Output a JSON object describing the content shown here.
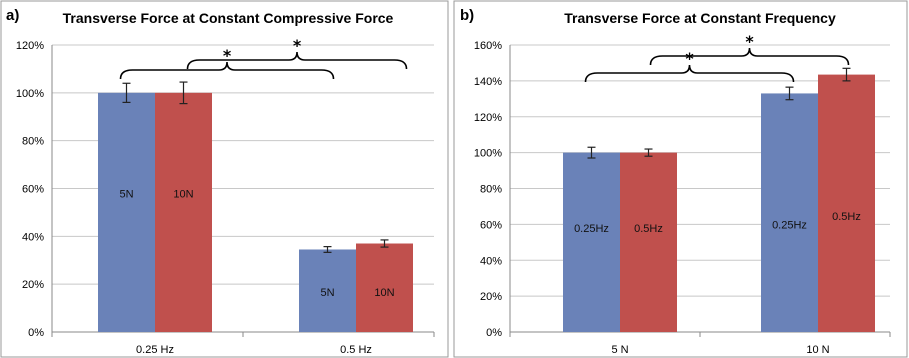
{
  "chart_data": [
    {
      "panel": "a)",
      "type": "bar",
      "title": "Transverse Force at Constant Compressive Force",
      "categories": [
        "0.25 Hz",
        "0.5 Hz"
      ],
      "y_ticks": [
        "0%",
        "20%",
        "40%",
        "60%",
        "80%",
        "100%",
        "120%"
      ],
      "ylim": [
        0,
        120
      ],
      "grid": true,
      "series": [
        {
          "color": "#6a82b8",
          "values": [
            100,
            34.5
          ],
          "errors": [
            4,
            1.2
          ],
          "bar_labels": [
            "5N",
            "5N"
          ]
        },
        {
          "color": "#c0504d",
          "values": [
            100,
            37
          ],
          "errors": [
            4.5,
            1.5
          ],
          "bar_labels": [
            "10N",
            "10N"
          ]
        }
      ],
      "annotations": [
        "*",
        "*"
      ]
    },
    {
      "panel": "b)",
      "type": "bar",
      "title": "Transverse Force at Constant Frequency",
      "categories": [
        "5 N",
        "10 N"
      ],
      "y_ticks": [
        "0%",
        "20%",
        "40%",
        "60%",
        "80%",
        "100%",
        "120%",
        "140%",
        "160%"
      ],
      "ylim": [
        0,
        160
      ],
      "grid": true,
      "series": [
        {
          "color": "#6a82b8",
          "values": [
            100,
            133
          ],
          "errors": [
            3,
            3.5
          ],
          "bar_labels": [
            "0.25Hz",
            "0.25Hz"
          ]
        },
        {
          "color": "#c0504d",
          "values": [
            100,
            143.5
          ],
          "errors": [
            2,
            3.5
          ],
          "bar_labels": [
            "0.5Hz",
            "0.5Hz"
          ]
        }
      ],
      "annotations": [
        "*",
        "*"
      ]
    }
  ]
}
